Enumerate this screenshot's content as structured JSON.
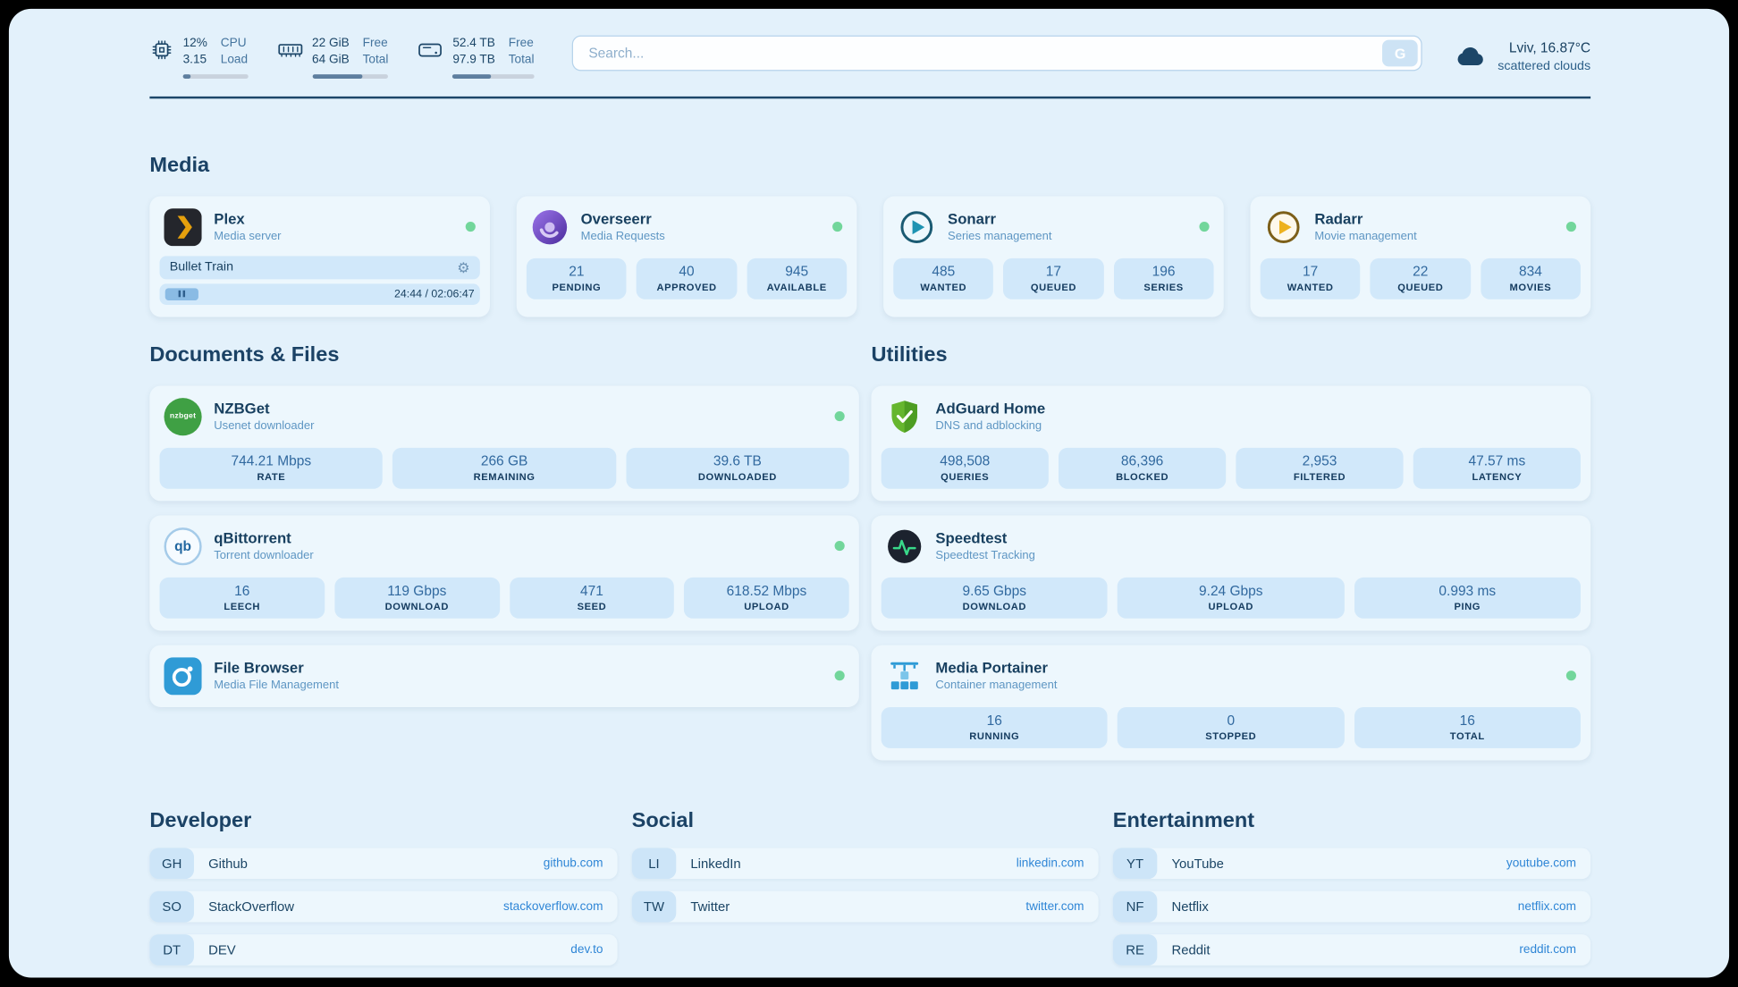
{
  "topbar": {
    "cpu": {
      "percent": "12%",
      "load": "3.15",
      "label_top": "CPU",
      "label_bottom": "Load",
      "bar_pct": 12
    },
    "ram": {
      "free": "22 GiB",
      "total": "64 GiB",
      "label_top": "Free",
      "label_bottom": "Total",
      "bar_pct": 66
    },
    "disk": {
      "free": "52.4 TB",
      "total": "97.9 TB",
      "label_top": "Free",
      "label_bottom": "Total",
      "bar_pct": 47
    },
    "search": {
      "placeholder": "Search...",
      "button_label": "G"
    },
    "weather": {
      "location": "Lviv, 16.87°C",
      "condition": "scattered clouds"
    }
  },
  "sections": {
    "media": {
      "title": "Media",
      "plex": {
        "name": "Plex",
        "subtitle": "Media server",
        "now_playing": "Bullet Train",
        "progress_time": "24:44 / 02:06:47"
      },
      "overseerr": {
        "name": "Overseerr",
        "subtitle": "Media Requests",
        "stats": [
          {
            "value": "21",
            "label": "PENDING"
          },
          {
            "value": "40",
            "label": "APPROVED"
          },
          {
            "value": "945",
            "label": "AVAILABLE"
          }
        ]
      },
      "sonarr": {
        "name": "Sonarr",
        "subtitle": "Series management",
        "stats": [
          {
            "value": "485",
            "label": "WANTED"
          },
          {
            "value": "17",
            "label": "QUEUED"
          },
          {
            "value": "196",
            "label": "SERIES"
          }
        ]
      },
      "radarr": {
        "name": "Radarr",
        "subtitle": "Movie management",
        "stats": [
          {
            "value": "17",
            "label": "WANTED"
          },
          {
            "value": "22",
            "label": "QUEUED"
          },
          {
            "value": "834",
            "label": "MOVIES"
          }
        ]
      }
    },
    "documents": {
      "title": "Documents & Files",
      "nzbget": {
        "name": "NZBGet",
        "subtitle": "Usenet downloader",
        "icon_text": "nzbget",
        "stats": [
          {
            "value": "744.21 Mbps",
            "label": "RATE"
          },
          {
            "value": "266 GB",
            "label": "REMAINING"
          },
          {
            "value": "39.6 TB",
            "label": "DOWNLOADED"
          }
        ]
      },
      "qbittorrent": {
        "name": "qBittorrent",
        "subtitle": "Torrent downloader",
        "icon_text": "qb",
        "stats": [
          {
            "value": "16",
            "label": "LEECH"
          },
          {
            "value": "119 Gbps",
            "label": "DOWNLOAD"
          },
          {
            "value": "471",
            "label": "SEED"
          },
          {
            "value": "618.52 Mbps",
            "label": "UPLOAD"
          }
        ]
      },
      "filebrowser": {
        "name": "File Browser",
        "subtitle": "Media File Management"
      }
    },
    "utilities": {
      "title": "Utilities",
      "adguard": {
        "name": "AdGuard Home",
        "subtitle": "DNS and adblocking",
        "stats": [
          {
            "value": "498,508",
            "label": "QUERIES"
          },
          {
            "value": "86,396",
            "label": "BLOCKED"
          },
          {
            "value": "2,953",
            "label": "FILTERED"
          },
          {
            "value": "47.57 ms",
            "label": "LATENCY"
          }
        ]
      },
      "speedtest": {
        "name": "Speedtest",
        "subtitle": "Speedtest Tracking",
        "stats": [
          {
            "value": "9.65 Gbps",
            "label": "DOWNLOAD"
          },
          {
            "value": "9.24 Gbps",
            "label": "UPLOAD"
          },
          {
            "value": "0.993 ms",
            "label": "PING"
          }
        ]
      },
      "portainer": {
        "name": "Media Portainer",
        "subtitle": "Container management",
        "stats": [
          {
            "value": "16",
            "label": "RUNNING"
          },
          {
            "value": "0",
            "label": "STOPPED"
          },
          {
            "value": "16",
            "label": "TOTAL"
          }
        ]
      }
    },
    "bookmarks": {
      "developer": {
        "title": "Developer",
        "items": [
          {
            "abbr": "GH",
            "name": "Github",
            "link": "github.com"
          },
          {
            "abbr": "SO",
            "name": "StackOverflow",
            "link": "stackoverflow.com"
          },
          {
            "abbr": "DT",
            "name": "DEV",
            "link": "dev.to"
          }
        ]
      },
      "social": {
        "title": "Social",
        "items": [
          {
            "abbr": "LI",
            "name": "LinkedIn",
            "link": "linkedin.com"
          },
          {
            "abbr": "TW",
            "name": "Twitter",
            "link": "twitter.com"
          }
        ]
      },
      "entertainment": {
        "title": "Entertainment",
        "items": [
          {
            "abbr": "YT",
            "name": "YouTube",
            "link": "youtube.com"
          },
          {
            "abbr": "NF",
            "name": "Netflix",
            "link": "netflix.com"
          },
          {
            "abbr": "RE",
            "name": "Reddit",
            "link": "reddit.com"
          }
        ]
      }
    }
  },
  "colors": {
    "accent": "#2f86d6",
    "status_online": "#72d69b",
    "background": "#e3f1fb"
  }
}
